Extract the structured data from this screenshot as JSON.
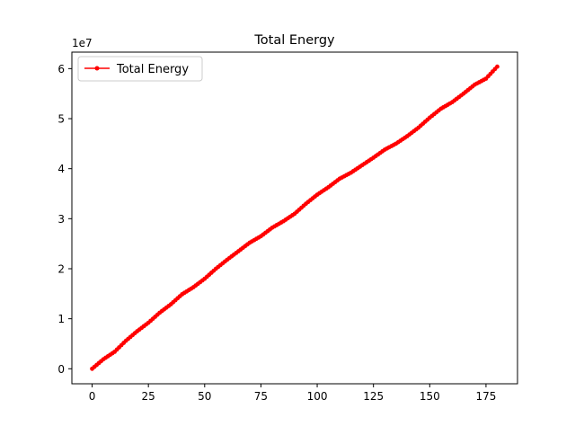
{
  "chart_data": {
    "type": "line",
    "title": "Total Energy",
    "xlabel": "",
    "ylabel": "",
    "y_offset_label": "1e7",
    "xlim": [
      -9,
      189
    ],
    "ylim": [
      -3.0,
      63.3
    ],
    "y_scale_note": "values in units of 1e7",
    "x_ticks": [
      0,
      25,
      50,
      75,
      100,
      125,
      150,
      175
    ],
    "x_tick_labels": [
      "0",
      "25",
      "50",
      "75",
      "100",
      "125",
      "150",
      "175"
    ],
    "y_ticks": [
      0,
      10,
      20,
      30,
      40,
      50,
      60
    ],
    "y_tick_labels": [
      "0",
      "1",
      "2",
      "3",
      "4",
      "5",
      "6"
    ],
    "grid": false,
    "legend_position": "top-left",
    "series": [
      {
        "name": "Total Energy",
        "color": "#ff0000",
        "marker": "point",
        "x": [
          0,
          5,
          10,
          15,
          20,
          25,
          30,
          35,
          40,
          45,
          50,
          55,
          60,
          65,
          70,
          75,
          80,
          85,
          90,
          95,
          100,
          105,
          110,
          115,
          120,
          125,
          130,
          135,
          140,
          145,
          150,
          155,
          160,
          165,
          170,
          175,
          180
        ],
        "y": [
          0.0,
          1.9,
          3.4,
          5.6,
          7.5,
          9.2,
          11.2,
          12.9,
          14.9,
          16.3,
          18.0,
          20.0,
          21.8,
          23.5,
          25.2,
          26.5,
          28.2,
          29.5,
          31.0,
          33.0,
          34.8,
          36.3,
          38.0,
          39.2,
          40.7,
          42.2,
          43.8,
          45.0,
          46.5,
          48.2,
          50.2,
          52.0,
          53.3,
          55.0,
          56.8,
          58.0,
          60.4
        ]
      }
    ]
  }
}
